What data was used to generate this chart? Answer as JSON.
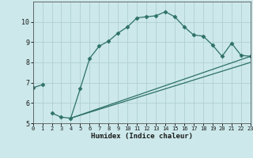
{
  "title": "",
  "xlabel": "Humidex (Indice chaleur)",
  "xlim": [
    0,
    23
  ],
  "ylim": [
    5,
    11
  ],
  "yticks": [
    5,
    6,
    7,
    8,
    9,
    10
  ],
  "xticks": [
    0,
    1,
    2,
    3,
    4,
    5,
    6,
    7,
    8,
    9,
    10,
    11,
    12,
    13,
    14,
    15,
    16,
    17,
    18,
    19,
    20,
    21,
    22,
    23
  ],
  "bg_color": "#cce8ea",
  "grid_color": "#b0d0d4",
  "line_color": "#2d7068",
  "line1_x": [
    0,
    1
  ],
  "line1_y": [
    6.75,
    6.9
  ],
  "line2_x": [
    2,
    3,
    4,
    5,
    6,
    7,
    8,
    9,
    10,
    11,
    12,
    13,
    14,
    15,
    16,
    17,
    18,
    19,
    20,
    21,
    22,
    23
  ],
  "line2_y": [
    5.5,
    5.3,
    5.25,
    6.7,
    8.2,
    8.8,
    9.05,
    9.45,
    9.75,
    10.2,
    10.25,
    10.3,
    10.5,
    10.25,
    9.75,
    9.35,
    9.3,
    8.85,
    8.3,
    8.95,
    8.35,
    8.3
  ],
  "line3_x": [
    4,
    23
  ],
  "line3_y": [
    5.25,
    8.3
  ],
  "line4_x": [
    4,
    23
  ],
  "line4_y": [
    5.25,
    8.0
  ],
  "marker": "D",
  "markersize": 2.5,
  "linewidth": 0.9
}
